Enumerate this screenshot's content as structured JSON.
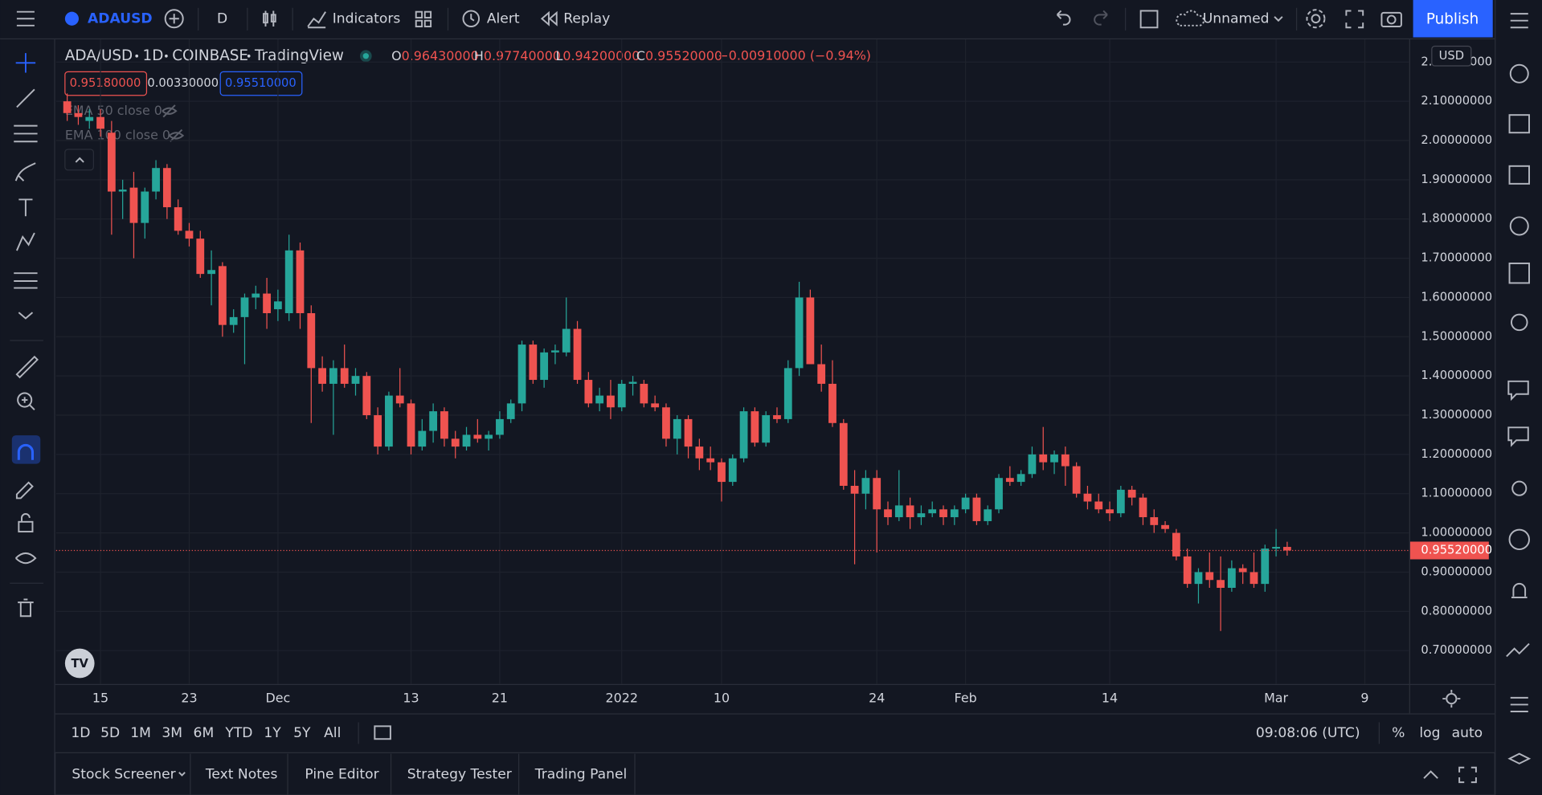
{
  "toolbar": {
    "symbol": "ADAUSD",
    "interval": "D",
    "indicators": "Indicators",
    "alert": "Alert",
    "replay": "Replay",
    "layout_name": "Unnamed",
    "publish": "Publish"
  },
  "legend": {
    "symbol": "ADA/USD",
    "interval": "1D",
    "exchange": "COINBASE",
    "source": "TradingView",
    "ohlc": [
      {
        "key": "O",
        "value": "0.96430000"
      },
      {
        "key": "H",
        "value": "0.97740000"
      },
      {
        "key": "L",
        "value": "0.94200000"
      },
      {
        "key": "C",
        "value": "0.95520000"
      }
    ],
    "change": "−0.00910000 (−0.94%)",
    "bid": "0.95180000",
    "spread": "0.00330000",
    "ask": "0.95510000",
    "studies": [
      "EMA 50 close 0",
      "EMA 100 close 0"
    ]
  },
  "chart": {
    "type": "candlestick",
    "up_color": "#26a69a",
    "down_color": "#ef5350",
    "grid": true,
    "currency": "USD",
    "xlim": [
      "2021-11-11",
      "2022-03-13"
    ],
    "xticks": [
      {
        "value": "2021-11-15",
        "label": "15"
      },
      {
        "value": "2021-11-23",
        "label": "23"
      },
      {
        "value": "2021-12-01",
        "label": "Dec"
      },
      {
        "value": "2021-12-13",
        "label": "13"
      },
      {
        "value": "2021-12-21",
        "label": "21"
      },
      {
        "value": "2022-01-01",
        "label": "2022"
      },
      {
        "value": "2022-01-10",
        "label": "10"
      },
      {
        "value": "2022-01-24",
        "label": "24"
      },
      {
        "value": "2022-02-01",
        "label": "Feb"
      },
      {
        "value": "2022-02-14",
        "label": "14"
      },
      {
        "value": "2022-03-01",
        "label": "Mar"
      },
      {
        "value": "2022-03-09",
        "label": "9"
      }
    ],
    "ylim": [
      0.615,
      2.258
    ],
    "yticks": [
      {
        "value": 2.2,
        "label": "2.20000000"
      },
      {
        "value": 2.1,
        "label": "2.10000000"
      },
      {
        "value": 2.0,
        "label": "2.00000000"
      },
      {
        "value": 1.9,
        "label": "1.90000000"
      },
      {
        "value": 1.8,
        "label": "1.80000000"
      },
      {
        "value": 1.7,
        "label": "1.70000000"
      },
      {
        "value": 1.6,
        "label": "1.60000000"
      },
      {
        "value": 1.5,
        "label": "1.50000000"
      },
      {
        "value": 1.4,
        "label": "1.40000000"
      },
      {
        "value": 1.3,
        "label": "1.30000000"
      },
      {
        "value": 1.2,
        "label": "1.20000000"
      },
      {
        "value": 1.1,
        "label": "1.10000000"
      },
      {
        "value": 1.0,
        "label": "1.00000000"
      },
      {
        "value": 0.9,
        "label": "0.90000000"
      },
      {
        "value": 0.8,
        "label": "0.80000000"
      },
      {
        "value": 0.7,
        "label": "0.70000000"
      }
    ],
    "last_price": {
      "value": 0.9552,
      "label": "0.95520000"
    },
    "candles": [
      [
        "2021-11-12",
        2.1,
        2.12,
        2.05,
        2.07
      ],
      [
        "2021-11-13",
        2.07,
        2.09,
        2.04,
        2.06
      ],
      [
        "2021-11-14",
        2.05,
        2.08,
        2.03,
        2.06
      ],
      [
        "2021-11-15",
        2.06,
        2.08,
        2.01,
        2.03
      ],
      [
        "2021-11-16",
        2.02,
        2.05,
        1.76,
        1.87
      ],
      [
        "2021-11-17",
        1.87,
        1.9,
        1.8,
        1.875
      ],
      [
        "2021-11-18",
        1.88,
        1.92,
        1.7,
        1.79
      ],
      [
        "2021-11-19",
        1.79,
        1.88,
        1.75,
        1.87
      ],
      [
        "2021-11-20",
        1.87,
        1.95,
        1.85,
        1.93
      ],
      [
        "2021-11-21",
        1.93,
        1.94,
        1.8,
        1.83
      ],
      [
        "2021-11-22",
        1.83,
        1.85,
        1.76,
        1.77
      ],
      [
        "2021-11-23",
        1.77,
        1.79,
        1.73,
        1.75
      ],
      [
        "2021-11-24",
        1.75,
        1.77,
        1.65,
        1.66
      ],
      [
        "2021-11-25",
        1.66,
        1.72,
        1.58,
        1.67
      ],
      [
        "2021-11-26",
        1.68,
        1.69,
        1.5,
        1.53
      ],
      [
        "2021-11-27",
        1.53,
        1.57,
        1.51,
        1.55
      ],
      [
        "2021-11-28",
        1.55,
        1.61,
        1.43,
        1.6
      ],
      [
        "2021-11-29",
        1.6,
        1.63,
        1.57,
        1.61
      ],
      [
        "2021-11-30",
        1.61,
        1.65,
        1.52,
        1.56
      ],
      [
        "2021-12-01",
        1.57,
        1.62,
        1.54,
        1.59
      ],
      [
        "2021-12-02",
        1.56,
        1.76,
        1.54,
        1.72
      ],
      [
        "2021-12-03",
        1.72,
        1.74,
        1.52,
        1.56
      ],
      [
        "2021-12-04",
        1.56,
        1.58,
        1.28,
        1.42
      ],
      [
        "2021-12-05",
        1.42,
        1.45,
        1.36,
        1.38
      ],
      [
        "2021-12-06",
        1.38,
        1.44,
        1.25,
        1.42
      ],
      [
        "2021-12-07",
        1.42,
        1.48,
        1.37,
        1.38
      ],
      [
        "2021-12-08",
        1.38,
        1.42,
        1.35,
        1.4
      ],
      [
        "2021-12-09",
        1.4,
        1.41,
        1.29,
        1.3
      ],
      [
        "2021-12-10",
        1.3,
        1.32,
        1.2,
        1.22
      ],
      [
        "2021-12-11",
        1.22,
        1.36,
        1.21,
        1.35
      ],
      [
        "2021-12-12",
        1.35,
        1.42,
        1.32,
        1.33
      ],
      [
        "2021-12-13",
        1.33,
        1.34,
        1.2,
        1.22
      ],
      [
        "2021-12-14",
        1.22,
        1.29,
        1.21,
        1.26
      ],
      [
        "2021-12-15",
        1.26,
        1.33,
        1.23,
        1.31
      ],
      [
        "2021-12-16",
        1.31,
        1.32,
        1.22,
        1.24
      ],
      [
        "2021-12-17",
        1.24,
        1.26,
        1.19,
        1.22
      ],
      [
        "2021-12-18",
        1.22,
        1.27,
        1.21,
        1.25
      ],
      [
        "2021-12-19",
        1.25,
        1.29,
        1.23,
        1.24
      ],
      [
        "2021-12-20",
        1.24,
        1.26,
        1.21,
        1.25
      ],
      [
        "2021-12-21",
        1.25,
        1.31,
        1.24,
        1.29
      ],
      [
        "2021-12-22",
        1.29,
        1.34,
        1.28,
        1.33
      ],
      [
        "2021-12-23",
        1.33,
        1.49,
        1.31,
        1.48
      ],
      [
        "2021-12-24",
        1.48,
        1.49,
        1.38,
        1.39
      ],
      [
        "2021-12-25",
        1.39,
        1.47,
        1.37,
        1.46
      ],
      [
        "2021-12-26",
        1.46,
        1.48,
        1.43,
        1.465
      ],
      [
        "2021-12-27",
        1.46,
        1.6,
        1.45,
        1.52
      ],
      [
        "2021-12-28",
        1.52,
        1.54,
        1.38,
        1.39
      ],
      [
        "2021-12-29",
        1.39,
        1.41,
        1.32,
        1.33
      ],
      [
        "2021-12-30",
        1.33,
        1.37,
        1.31,
        1.35
      ],
      [
        "2021-12-31",
        1.35,
        1.39,
        1.29,
        1.32
      ],
      [
        "2022-01-01",
        1.32,
        1.39,
        1.31,
        1.38
      ],
      [
        "2022-01-02",
        1.38,
        1.4,
        1.35,
        1.385
      ],
      [
        "2022-01-03",
        1.38,
        1.39,
        1.32,
        1.33
      ],
      [
        "2022-01-04",
        1.33,
        1.35,
        1.31,
        1.32
      ],
      [
        "2022-01-05",
        1.32,
        1.33,
        1.22,
        1.24
      ],
      [
        "2022-01-06",
        1.24,
        1.3,
        1.2,
        1.29
      ],
      [
        "2022-01-07",
        1.29,
        1.3,
        1.19,
        1.22
      ],
      [
        "2022-01-08",
        1.22,
        1.24,
        1.16,
        1.19
      ],
      [
        "2022-01-09",
        1.19,
        1.22,
        1.16,
        1.18
      ],
      [
        "2022-01-10",
        1.18,
        1.19,
        1.08,
        1.13
      ],
      [
        "2022-01-11",
        1.13,
        1.2,
        1.12,
        1.19
      ],
      [
        "2022-01-12",
        1.19,
        1.32,
        1.18,
        1.31
      ],
      [
        "2022-01-13",
        1.31,
        1.32,
        1.22,
        1.23
      ],
      [
        "2022-01-14",
        1.23,
        1.31,
        1.22,
        1.3
      ],
      [
        "2022-01-15",
        1.3,
        1.32,
        1.28,
        1.29
      ],
      [
        "2022-01-16",
        1.29,
        1.44,
        1.28,
        1.42
      ],
      [
        "2022-01-17",
        1.42,
        1.64,
        1.4,
        1.6
      ],
      [
        "2022-01-18",
        1.6,
        1.62,
        1.43,
        1.43
      ],
      [
        "2022-01-19",
        1.43,
        1.48,
        1.36,
        1.38
      ],
      [
        "2022-01-20",
        1.38,
        1.44,
        1.27,
        1.28
      ],
      [
        "2022-01-21",
        1.28,
        1.29,
        1.11,
        1.12
      ],
      [
        "2022-01-22",
        1.12,
        1.16,
        0.92,
        1.1
      ],
      [
        "2022-01-23",
        1.1,
        1.16,
        1.06,
        1.14
      ],
      [
        "2022-01-24",
        1.14,
        1.16,
        0.95,
        1.06
      ],
      [
        "2022-01-25",
        1.06,
        1.08,
        1.02,
        1.04
      ],
      [
        "2022-01-26",
        1.04,
        1.16,
        1.03,
        1.07
      ],
      [
        "2022-01-27",
        1.07,
        1.09,
        1.01,
        1.04
      ],
      [
        "2022-01-28",
        1.04,
        1.07,
        1.02,
        1.05
      ],
      [
        "2022-01-29",
        1.05,
        1.08,
        1.04,
        1.06
      ],
      [
        "2022-01-30",
        1.06,
        1.07,
        1.02,
        1.04
      ],
      [
        "2022-01-31",
        1.04,
        1.07,
        1.02,
        1.06
      ],
      [
        "2022-02-01",
        1.06,
        1.1,
        1.05,
        1.09
      ],
      [
        "2022-02-02",
        1.09,
        1.1,
        1.02,
        1.03
      ],
      [
        "2022-02-03",
        1.03,
        1.07,
        1.02,
        1.06
      ],
      [
        "2022-02-04",
        1.06,
        1.15,
        1.05,
        1.14
      ],
      [
        "2022-02-05",
        1.14,
        1.17,
        1.12,
        1.13
      ],
      [
        "2022-02-06",
        1.13,
        1.16,
        1.12,
        1.15
      ],
      [
        "2022-02-07",
        1.15,
        1.22,
        1.14,
        1.2
      ],
      [
        "2022-02-08",
        1.2,
        1.27,
        1.16,
        1.18
      ],
      [
        "2022-02-09",
        1.18,
        1.21,
        1.15,
        1.2
      ],
      [
        "2022-02-10",
        1.2,
        1.22,
        1.12,
        1.17
      ],
      [
        "2022-02-11",
        1.17,
        1.18,
        1.09,
        1.1
      ],
      [
        "2022-02-12",
        1.1,
        1.12,
        1.06,
        1.08
      ],
      [
        "2022-02-13",
        1.08,
        1.1,
        1.05,
        1.06
      ],
      [
        "2022-02-14",
        1.06,
        1.08,
        1.03,
        1.05
      ],
      [
        "2022-02-15",
        1.05,
        1.12,
        1.04,
        1.11
      ],
      [
        "2022-02-16",
        1.11,
        1.12,
        1.07,
        1.09
      ],
      [
        "2022-02-17",
        1.09,
        1.1,
        1.02,
        1.04
      ],
      [
        "2022-02-18",
        1.04,
        1.06,
        1.0,
        1.02
      ],
      [
        "2022-02-19",
        1.02,
        1.03,
        1.0,
        1.01
      ],
      [
        "2022-02-20",
        1.0,
        1.01,
        0.93,
        0.94
      ],
      [
        "2022-02-21",
        0.94,
        0.96,
        0.86,
        0.87
      ],
      [
        "2022-02-22",
        0.87,
        0.91,
        0.82,
        0.9
      ],
      [
        "2022-02-23",
        0.9,
        0.95,
        0.86,
        0.88
      ],
      [
        "2022-02-24",
        0.88,
        0.94,
        0.75,
        0.86
      ],
      [
        "2022-02-25",
        0.86,
        0.93,
        0.85,
        0.91
      ],
      [
        "2022-02-26",
        0.91,
        0.92,
        0.87,
        0.9
      ],
      [
        "2022-02-27",
        0.9,
        0.95,
        0.86,
        0.87
      ],
      [
        "2022-02-28",
        0.87,
        0.97,
        0.85,
        0.96
      ],
      [
        "2022-03-01",
        0.96,
        1.01,
        0.94,
        0.9643
      ],
      [
        "2022-03-02",
        0.9643,
        0.9774,
        0.942,
        0.9552
      ]
    ]
  },
  "ranges": [
    "1D",
    "5D",
    "1M",
    "3M",
    "6M",
    "YTD",
    "1Y",
    "5Y",
    "All"
  ],
  "clock": "09:08:06 (UTC)",
  "scale_options": [
    "%",
    "log",
    "auto"
  ],
  "bottom_tabs": [
    "Stock Screener",
    "Text Notes",
    "Pine Editor",
    "Strategy Tester",
    "Trading Panel"
  ]
}
